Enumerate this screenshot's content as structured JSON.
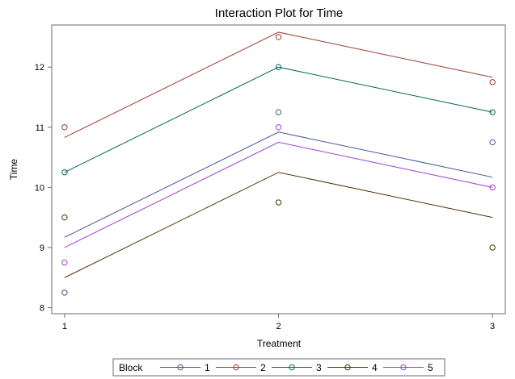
{
  "chart_data": {
    "type": "line",
    "title": "Interaction Plot for Time",
    "xlabel": "Treatment",
    "ylabel": "Time",
    "x": [
      1,
      2,
      3
    ],
    "xlim": [
      0.94,
      3.06
    ],
    "ylim": [
      7.9,
      12.7
    ],
    "yticks": [
      8,
      9,
      10,
      11,
      12
    ],
    "grid": false,
    "legend": {
      "title": "Block",
      "placement": "bottom"
    },
    "series": [
      {
        "name": "1",
        "color": "#445694",
        "observed": [
          8.25,
          11.25,
          10.75
        ],
        "fitted": [
          9.17,
          10.92,
          10.17
        ]
      },
      {
        "name": "2",
        "color": "#a23a2e",
        "observed": [
          11.0,
          12.5,
          11.75
        ],
        "fitted": [
          10.83,
          12.58,
          11.83
        ]
      },
      {
        "name": "3",
        "color": "#01665e",
        "observed": [
          10.25,
          12.0,
          11.25
        ],
        "fitted": [
          10.25,
          12.0,
          11.25
        ]
      },
      {
        "name": "4",
        "color": "#543005",
        "observed": [
          9.5,
          9.75,
          9.0
        ],
        "fitted": [
          8.5,
          10.25,
          9.5
        ]
      },
      {
        "name": "5",
        "color": "#9d3cdb",
        "observed": [
          8.75,
          11.0,
          10.0
        ],
        "fitted": [
          9.0,
          10.75,
          10.0
        ]
      }
    ]
  }
}
